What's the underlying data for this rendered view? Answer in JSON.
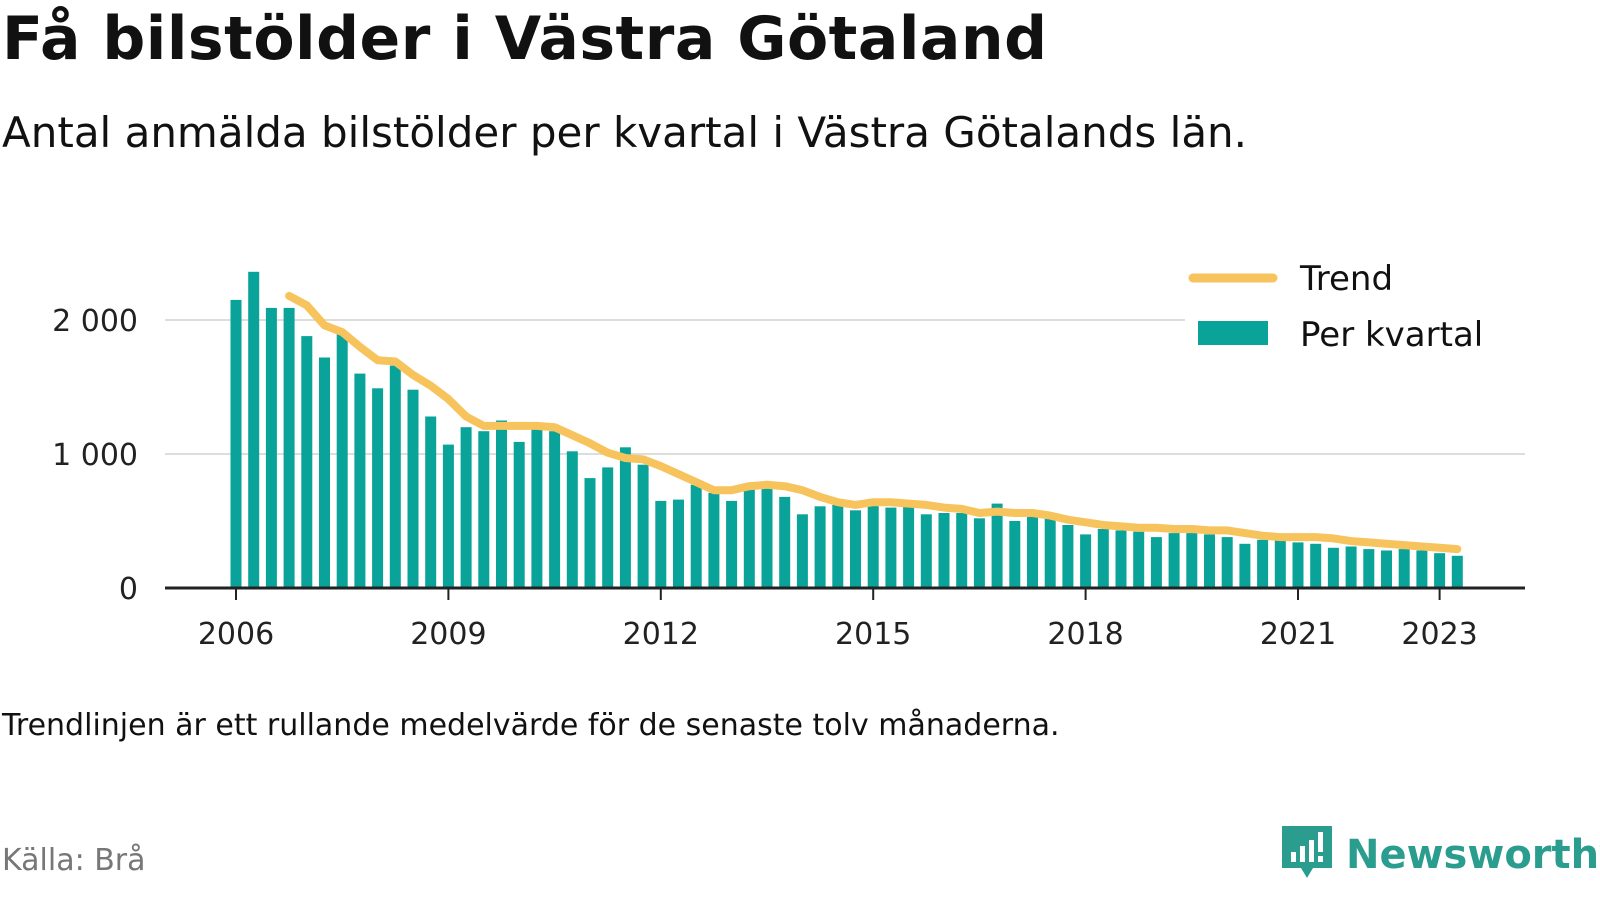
{
  "title": "Få bilstölder i Västra Götaland",
  "subtitle": "Antal anmälda bilstölder per kvartal i Västra Götalands län.",
  "note": "Trendlinjen är ett rullande medelvärde för de senaste tolv månaderna.",
  "source": "Källa: Brå",
  "brand": {
    "name": "Newsworthy",
    "icon": "newsworthy-logo-icon",
    "color": "#2a9d8f"
  },
  "colors": {
    "bars": "#0aa39a",
    "trend": "#f7c35c",
    "grid": "#dddddd",
    "axis": "#222222"
  },
  "chart_data": {
    "type": "bar",
    "title": "Få bilstölder i Västra Götaland",
    "subtitle": "Antal anmälda bilstölder per kvartal i Västra Götalands län.",
    "xlabel": "",
    "ylabel": "",
    "ylim": [
      0,
      2400
    ],
    "y_ticks": [
      0,
      1000,
      2000
    ],
    "y_tick_labels": [
      "0",
      "1 000",
      "2 000"
    ],
    "x_ticks": [
      2006,
      2009,
      2012,
      2015,
      2018,
      2021,
      2023
    ],
    "x_tick_labels": [
      "2006",
      "2009",
      "2012",
      "2015",
      "2018",
      "2021",
      "2023"
    ],
    "grid": true,
    "legend_position": "top-right",
    "categories": [
      "2006 Q1",
      "2006 Q2",
      "2006 Q3",
      "2006 Q4",
      "2007 Q1",
      "2007 Q2",
      "2007 Q3",
      "2007 Q4",
      "2008 Q1",
      "2008 Q2",
      "2008 Q3",
      "2008 Q4",
      "2009 Q1",
      "2009 Q2",
      "2009 Q3",
      "2009 Q4",
      "2010 Q1",
      "2010 Q2",
      "2010 Q3",
      "2010 Q4",
      "2011 Q1",
      "2011 Q2",
      "2011 Q3",
      "2011 Q4",
      "2012 Q1",
      "2012 Q2",
      "2012 Q3",
      "2012 Q4",
      "2013 Q1",
      "2013 Q2",
      "2013 Q3",
      "2013 Q4",
      "2014 Q1",
      "2014 Q2",
      "2014 Q3",
      "2014 Q4",
      "2015 Q1",
      "2015 Q2",
      "2015 Q3",
      "2015 Q4",
      "2016 Q1",
      "2016 Q2",
      "2016 Q3",
      "2016 Q4",
      "2017 Q1",
      "2017 Q2",
      "2017 Q3",
      "2017 Q4",
      "2018 Q1",
      "2018 Q2",
      "2018 Q3",
      "2018 Q4",
      "2019 Q1",
      "2019 Q2",
      "2019 Q3",
      "2019 Q4",
      "2020 Q1",
      "2020 Q2",
      "2020 Q3",
      "2020 Q4",
      "2021 Q1",
      "2021 Q2",
      "2021 Q3",
      "2021 Q4",
      "2022 Q1",
      "2022 Q2",
      "2022 Q3",
      "2022 Q4",
      "2023 Q1",
      "2023 Q2"
    ],
    "series": [
      {
        "name": "Per kvartal",
        "type": "bar",
        "values": [
          2150,
          2360,
          2090,
          2090,
          1880,
          1720,
          1900,
          1600,
          1490,
          1660,
          1480,
          1280,
          1070,
          1200,
          1170,
          1250,
          1090,
          1190,
          1170,
          1020,
          820,
          900,
          1050,
          920,
          650,
          660,
          770,
          710,
          650,
          740,
          790,
          680,
          550,
          610,
          620,
          580,
          620,
          600,
          610,
          550,
          560,
          560,
          520,
          630,
          500,
          540,
          530,
          470,
          400,
          440,
          430,
          420,
          380,
          410,
          410,
          400,
          380,
          330,
          360,
          360,
          340,
          330,
          300,
          310,
          290,
          280,
          290,
          280,
          260,
          240
        ]
      },
      {
        "name": "Trend",
        "type": "line",
        "values": [
          null,
          null,
          null,
          2180,
          2110,
          1960,
          1910,
          1800,
          1700,
          1690,
          1590,
          1510,
          1410,
          1280,
          1210,
          1210,
          1210,
          1210,
          1200,
          1140,
          1080,
          1010,
          970,
          960,
          910,
          850,
          790,
          730,
          730,
          760,
          770,
          760,
          730,
          680,
          640,
          620,
          640,
          640,
          630,
          620,
          600,
          590,
          560,
          570,
          560,
          560,
          540,
          510,
          490,
          470,
          460,
          450,
          450,
          440,
          440,
          430,
          430,
          410,
          390,
          380,
          380,
          380,
          370,
          350,
          340,
          330,
          320,
          310,
          300,
          290
        ]
      }
    ]
  }
}
